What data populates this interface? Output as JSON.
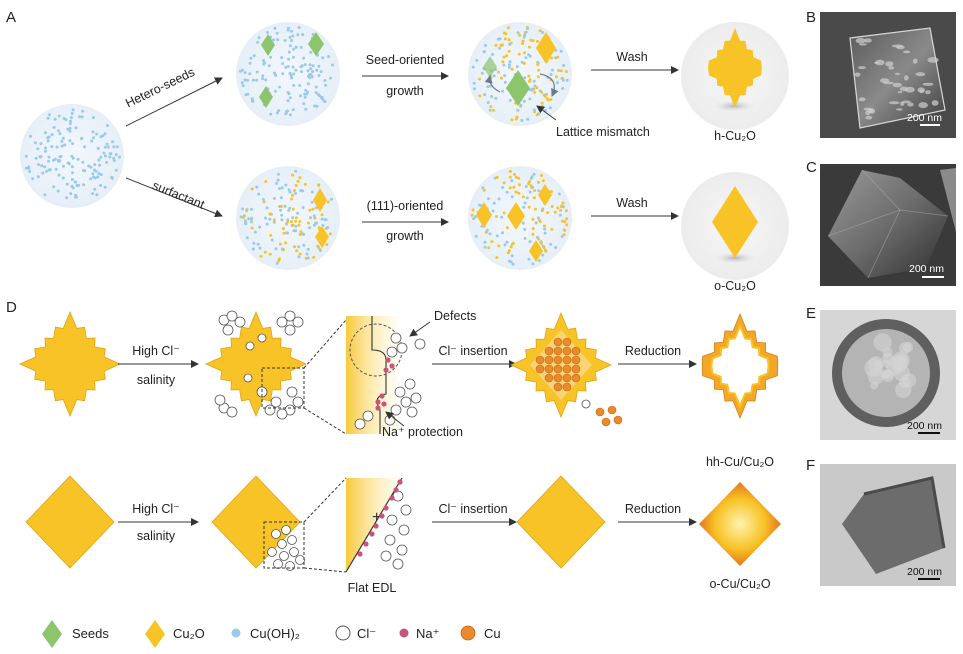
{
  "panels": {
    "a": "A",
    "b": "B",
    "c": "C",
    "d": "D",
    "e": "E",
    "f": "F"
  },
  "steps": {
    "hetero_seeds": "Hetero-seeds",
    "surfactant": "surfactant",
    "seed_oriented": "Seed-oriented",
    "growth": "growth",
    "oriented_111": "(111)-oriented",
    "wash": "Wash",
    "lattice_mismatch": "Lattice mismatch",
    "high_cl": "High Cl⁻",
    "salinity": "salinity",
    "cl_insertion": "Cl⁻ insertion",
    "reduction": "Reduction",
    "defects": "Defects",
    "na_protection": "Na⁺ protection",
    "flat_edl": "Flat EDL"
  },
  "products": {
    "h_cu2o": "h-Cu₂O",
    "o_cu2o": "o-Cu₂O",
    "hh_cu_cu2o": "hh-Cu/Cu₂O",
    "o_cu_cu2o": "o-Cu/Cu₂O"
  },
  "scale_bars": {
    "b": "200 nm",
    "c": "200 nm",
    "e": "200 nm",
    "f": "200 nm"
  },
  "legend": [
    {
      "label": "Seeds",
      "icon": "seed-diamond-icon",
      "color": "#8dc56c"
    },
    {
      "label": "Cu₂O",
      "icon": "cu2o-diamond-icon",
      "color": "#f7c326"
    },
    {
      "label": "Cu(OH)₂",
      "icon": "cuoh2-dot-icon",
      "color": "#9cc9ea"
    },
    {
      "label": "Cl⁻",
      "icon": "chloride-circle-icon",
      "color": "#ffffff"
    },
    {
      "label": "Na⁺",
      "icon": "sodium-dot-icon",
      "color": "#c9537a"
    },
    {
      "label": "Cu",
      "icon": "copper-dot-icon",
      "color": "#e98a2c"
    }
  ],
  "colors": {
    "cu2o": "#f7c326",
    "cu2o_dark": "#e89a1c",
    "seed": "#8dc56c",
    "cuoh2": "#9cc9ea",
    "sodium": "#c9537a",
    "copper": "#e98a2c",
    "micrograph_bg": "#3a3a3a"
  }
}
